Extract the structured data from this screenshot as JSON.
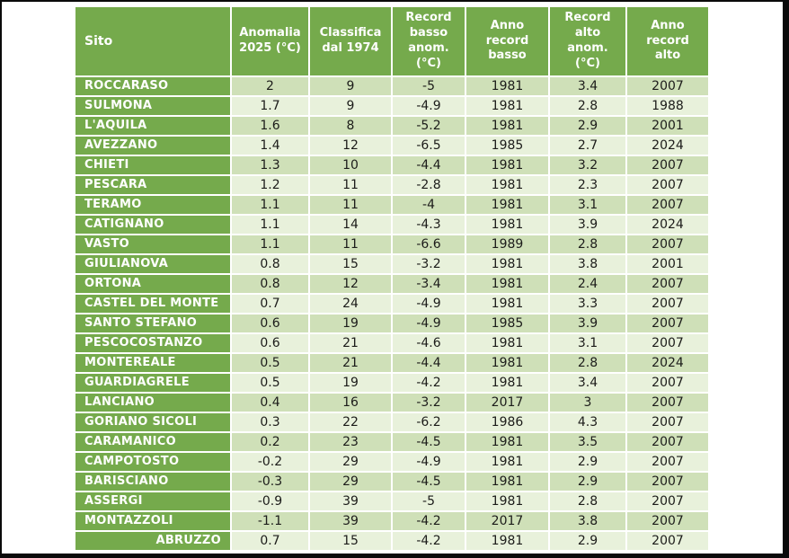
{
  "colors": {
    "header_green": "#75aa4c",
    "stripe_dark": "#cfe0b8",
    "stripe_light": "#e8f1db",
    "text_dark": "#1c1c1a",
    "frame_black": "#0a0a0a",
    "page_white": "#ffffff"
  },
  "chart_data": {
    "type": "table",
    "title": "",
    "columns": [
      {
        "key": "sito",
        "label": "Sito"
      },
      {
        "key": "anomalia_2025",
        "label": "Anomalia\n2025 (°C)"
      },
      {
        "key": "classifica_dal_1974",
        "label": "Classifica\ndal 1974"
      },
      {
        "key": "record_basso_anom",
        "label": "Record\nbasso\nanom.\n(°C)"
      },
      {
        "key": "anno_record_basso",
        "label": "Anno\nrecord\nbasso"
      },
      {
        "key": "record_alto_anom",
        "label": "Record\nalto\nanom.\n(°C)"
      },
      {
        "key": "anno_record_alto",
        "label": "Anno\nrecord\nalto"
      }
    ],
    "rows": [
      [
        "ROCCARASO",
        "2",
        "9",
        "-5",
        "1981",
        "3.4",
        "2007"
      ],
      [
        "SULMONA",
        "1.7",
        "9",
        "-4.9",
        "1981",
        "2.8",
        "1988"
      ],
      [
        "L'AQUILA",
        "1.6",
        "8",
        "-5.2",
        "1981",
        "2.9",
        "2001"
      ],
      [
        "AVEZZANO",
        "1.4",
        "12",
        "-6.5",
        "1985",
        "2.7",
        "2024"
      ],
      [
        "CHIETI",
        "1.3",
        "10",
        "-4.4",
        "1981",
        "3.2",
        "2007"
      ],
      [
        "PESCARA",
        "1.2",
        "11",
        "-2.8",
        "1981",
        "2.3",
        "2007"
      ],
      [
        "TERAMO",
        "1.1",
        "11",
        "-4",
        "1981",
        "3.1",
        "2007"
      ],
      [
        "CATIGNANO",
        "1.1",
        "14",
        "-4.3",
        "1981",
        "3.9",
        "2024"
      ],
      [
        "VASTO",
        "1.1",
        "11",
        "-6.6",
        "1989",
        "2.8",
        "2007"
      ],
      [
        "GIULIANOVA",
        "0.8",
        "15",
        "-3.2",
        "1981",
        "3.8",
        "2001"
      ],
      [
        "ORTONA",
        "0.8",
        "12",
        "-3.4",
        "1981",
        "2.4",
        "2007"
      ],
      [
        "CASTEL DEL MONTE",
        "0.7",
        "24",
        "-4.9",
        "1981",
        "3.3",
        "2007"
      ],
      [
        "SANTO STEFANO",
        "0.6",
        "19",
        "-4.9",
        "1985",
        "3.9",
        "2007"
      ],
      [
        "PESCOCOSTANZO",
        "0.6",
        "21",
        "-4.6",
        "1981",
        "3.1",
        "2007"
      ],
      [
        "MONTEREALE",
        "0.5",
        "21",
        "-4.4",
        "1981",
        "2.8",
        "2024"
      ],
      [
        "GUARDIAGRELE",
        "0.5",
        "19",
        "-4.2",
        "1981",
        "3.4",
        "2007"
      ],
      [
        "LANCIANO",
        "0.4",
        "16",
        "-3.2",
        "2017",
        "3",
        "2007"
      ],
      [
        "GORIANO SICOLI",
        "0.3",
        "22",
        "-6.2",
        "1986",
        "4.3",
        "2007"
      ],
      [
        "CARAMANICO",
        "0.2",
        "23",
        "-4.5",
        "1981",
        "3.5",
        "2007"
      ],
      [
        "CAMPOTOSTO",
        "-0.2",
        "29",
        "-4.9",
        "1981",
        "2.9",
        "2007"
      ],
      [
        "BARISCIANO",
        "-0.3",
        "29",
        "-4.5",
        "1981",
        "2.9",
        "2007"
      ],
      [
        "ASSERGI",
        "-0.9",
        "39",
        "-5",
        "1981",
        "2.8",
        "2007"
      ],
      [
        "MONTAZZOLI",
        "-1.1",
        "39",
        "-4.2",
        "2017",
        "3.8",
        "2007"
      ]
    ],
    "footer": [
      "ABRUZZO",
      "0.7",
      "15",
      "-4.2",
      "1981",
      "2.9",
      "2007"
    ],
    "layout": {
      "grid": "white 2px gaps between cells",
      "striping": "odd data rows darker green, even rows lighter green",
      "site_column_style": "solid green, bold white text, left aligned",
      "footer_style": "site label right aligned"
    }
  }
}
